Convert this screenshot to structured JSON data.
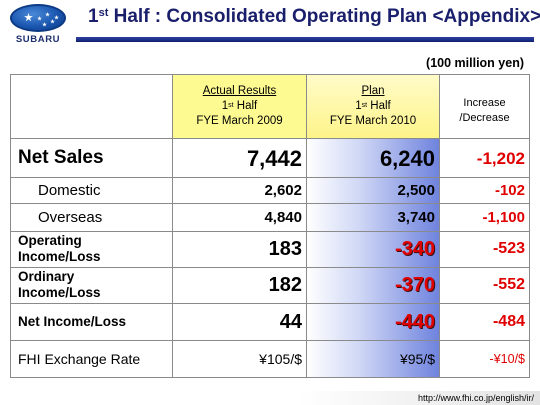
{
  "header": {
    "logo_text": "SUBARU",
    "title_prefix": "1",
    "title_sup": "st",
    "title_rest": " Half : Consolidated Operating Plan <Appendix>"
  },
  "unit": "(100 million yen)",
  "columns": {
    "actual": {
      "line1": "Actual Results",
      "line2_num": "1",
      "line2_sup": "st",
      "line2_rest": " Half",
      "line3": "FYE March 2009"
    },
    "plan": {
      "line1": "Plan",
      "line2_num": "1",
      "line2_sup": "st",
      "line2_rest": " Half",
      "line3": "FYE March 2010"
    },
    "change": {
      "line1": "Increase",
      "line2": "/Decrease"
    }
  },
  "rows": [
    {
      "label": "Net Sales",
      "actual": "7,442",
      "plan": "6,240",
      "change": "-1,202"
    },
    {
      "label": "Domestic",
      "actual": "2,602",
      "plan": "2,500",
      "change": "-102"
    },
    {
      "label": "Overseas",
      "actual": "4,840",
      "plan": "3,740",
      "change": "-1,100"
    },
    {
      "label_line1": "Operating",
      "label_line2": "Income/Loss",
      "actual": "183",
      "plan": "-340",
      "change": "-523"
    },
    {
      "label_line1": "Ordinary",
      "label_line2": "Income/Loss",
      "actual": "182",
      "plan": "-370",
      "change": "-552"
    },
    {
      "label": "Net Income/Loss",
      "actual": "44",
      "plan": "-440",
      "change": "-484"
    },
    {
      "label": "FHI Exchange Rate",
      "actual": "¥105/$",
      "plan": "¥95/$",
      "change": "-¥10/$"
    }
  ],
  "footer": {
    "url": "http://www.fhi.co.jp/english/ir/"
  },
  "colors": {
    "title": "#1a1f6b",
    "negative": "#e00000",
    "actual_header": "#fdfa92",
    "plan_gradient_end": "#6f83de"
  }
}
